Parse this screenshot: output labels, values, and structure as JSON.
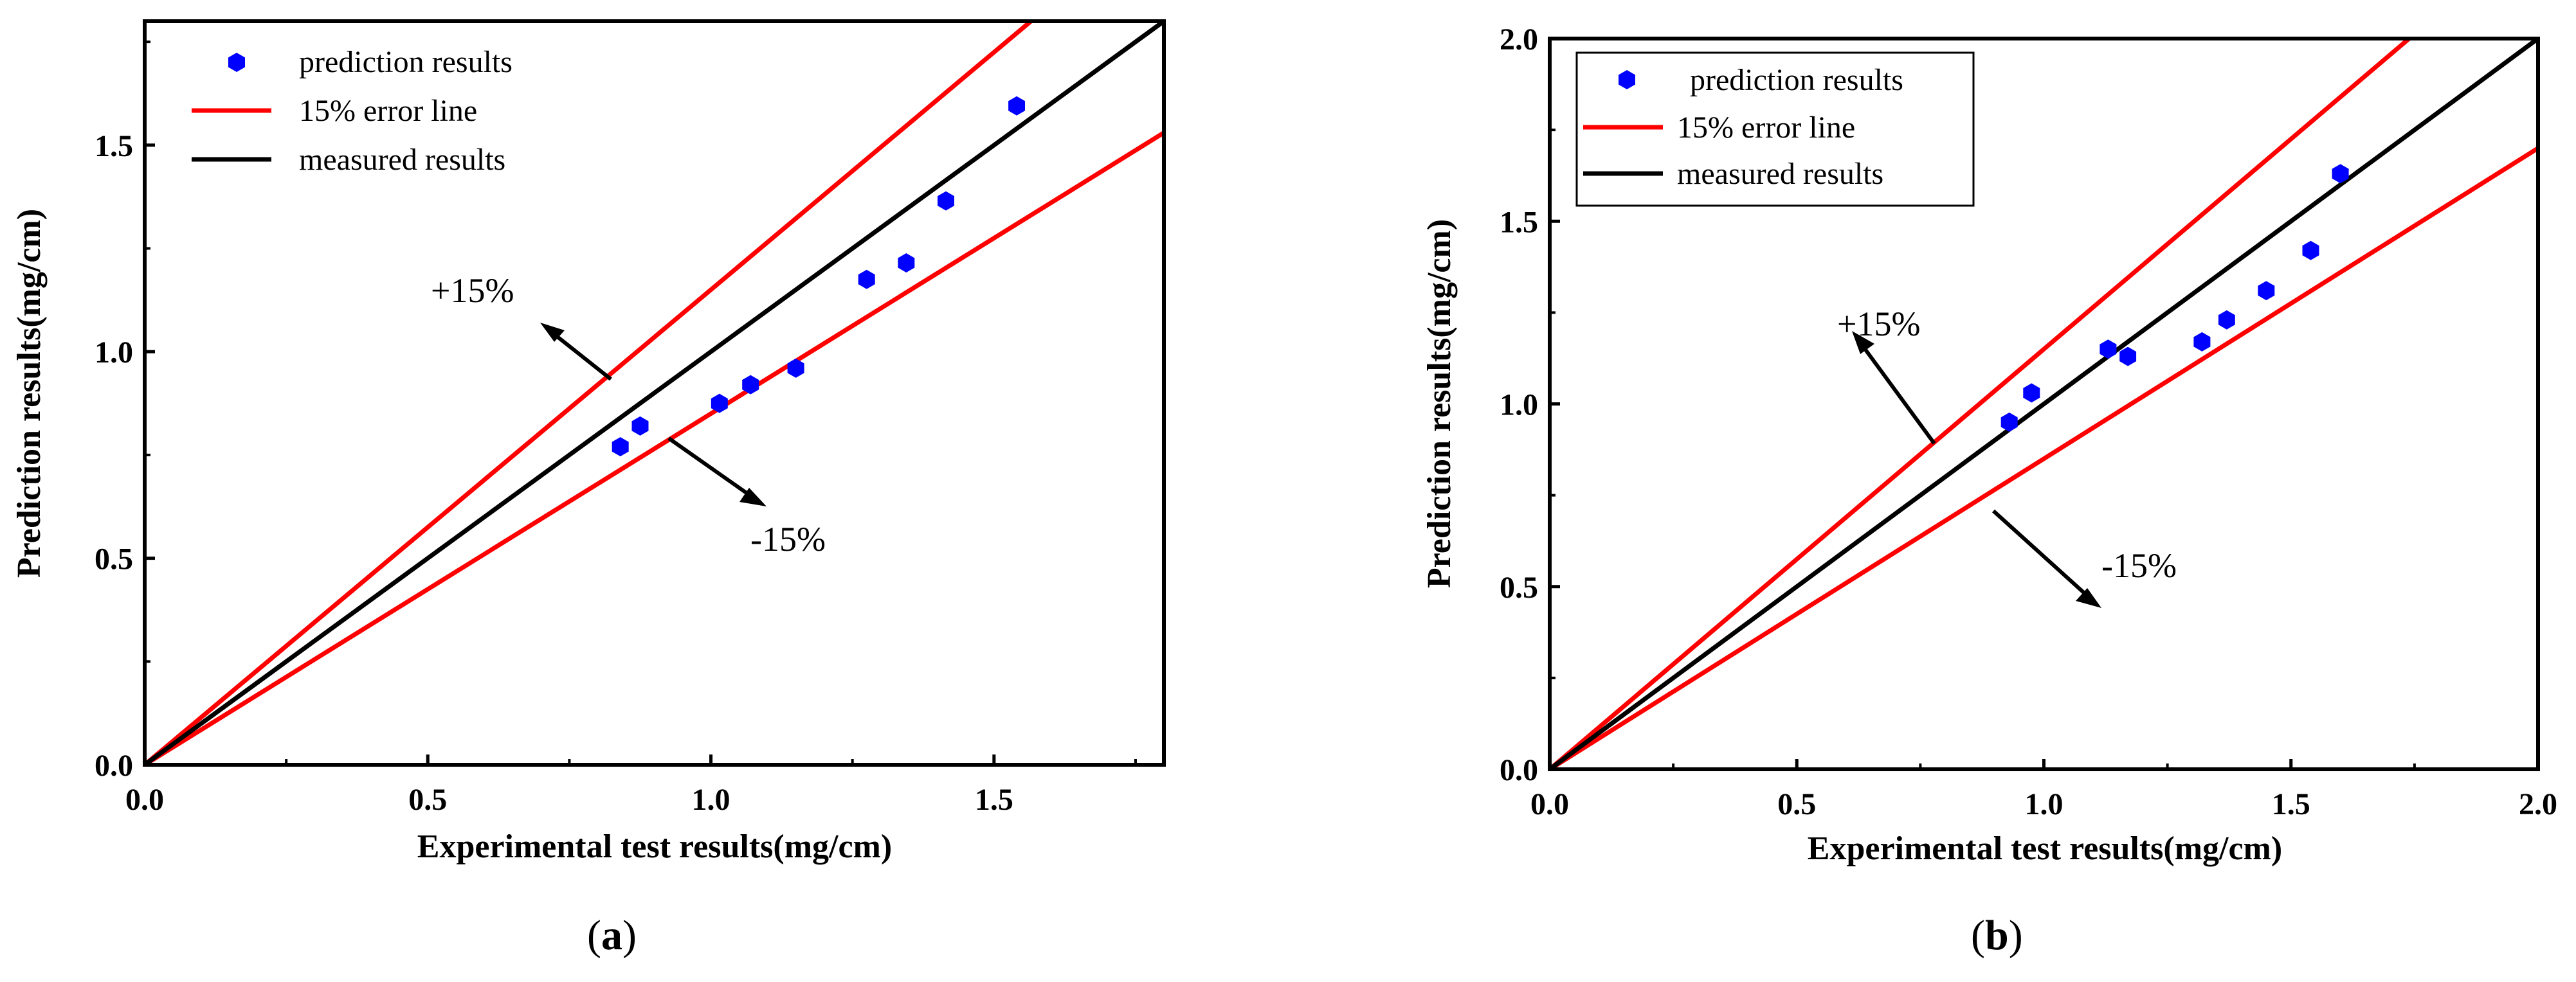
{
  "chart_data": [
    {
      "type": "scatter",
      "caption_letter": "a",
      "xlabel": "Experimental test results(mg/cm)",
      "ylabel": "Prediction results(mg/cm)",
      "xlim": [
        0,
        1.8
      ],
      "ylim": [
        0,
        1.8
      ],
      "xticks": [
        "0.0",
        "0.5",
        "1.0",
        "1.5"
      ],
      "yticks": [
        "0.0",
        "0.5",
        "1.0",
        "1.5"
      ],
      "legend": {
        "position": "top-left",
        "entries": [
          "prediction results",
          "15% error line",
          "measured results"
        ]
      },
      "series": [
        {
          "name": "prediction results",
          "marker": "hexagon",
          "color": "#0000ff",
          "points": [
            {
              "x": 0.84,
              "y": 0.77
            },
            {
              "x": 0.875,
              "y": 0.82
            },
            {
              "x": 1.015,
              "y": 0.875
            },
            {
              "x": 1.07,
              "y": 0.92
            },
            {
              "x": 1.15,
              "y": 0.96
            },
            {
              "x": 1.275,
              "y": 1.175
            },
            {
              "x": 1.345,
              "y": 1.215
            },
            {
              "x": 1.415,
              "y": 1.365
            },
            {
              "x": 1.54,
              "y": 1.595
            }
          ]
        },
        {
          "name": "15% error line",
          "kind": "line",
          "slope": 1.15,
          "color": "#ff0000"
        },
        {
          "name": "15% error line",
          "kind": "line",
          "slope": 0.85,
          "color": "#ff0000"
        },
        {
          "name": "measured results",
          "kind": "line",
          "slope": 1.0,
          "color": "#000000"
        }
      ],
      "annotations": [
        "+15%",
        "-15%"
      ]
    },
    {
      "type": "scatter",
      "caption_letter": "b",
      "xlabel": "Experimental test results(mg/cm)",
      "ylabel": "Prediction results(mg/cm)",
      "xlim": [
        0,
        2.0
      ],
      "ylim": [
        0,
        2.0
      ],
      "xticks": [
        "0.0",
        "0.5",
        "1.0",
        "1.5",
        "2.0"
      ],
      "yticks": [
        "0.0",
        "0.5",
        "1.0",
        "1.5",
        "2.0"
      ],
      "legend": {
        "position": "top-left",
        "entries": [
          "prediction results",
          "15% error line",
          "measured results"
        ]
      },
      "series": [
        {
          "name": "prediction results",
          "marker": "hexagon",
          "color": "#0000ff",
          "points": [
            {
              "x": 0.93,
              "y": 0.95
            },
            {
              "x": 0.975,
              "y": 1.03
            },
            {
              "x": 1.13,
              "y": 1.15
            },
            {
              "x": 1.17,
              "y": 1.13
            },
            {
              "x": 1.32,
              "y": 1.17
            },
            {
              "x": 1.37,
              "y": 1.23
            },
            {
              "x": 1.45,
              "y": 1.31
            },
            {
              "x": 1.54,
              "y": 1.42
            },
            {
              "x": 1.6,
              "y": 1.63
            }
          ]
        },
        {
          "name": "15% error line",
          "kind": "line",
          "slope": 1.15,
          "color": "#ff0000"
        },
        {
          "name": "15% error line",
          "kind": "line",
          "slope": 0.85,
          "color": "#ff0000"
        },
        {
          "name": "measured results",
          "kind": "line",
          "slope": 1.0,
          "color": "#000000"
        }
      ],
      "annotations": [
        "+15%",
        "-15%"
      ]
    }
  ]
}
